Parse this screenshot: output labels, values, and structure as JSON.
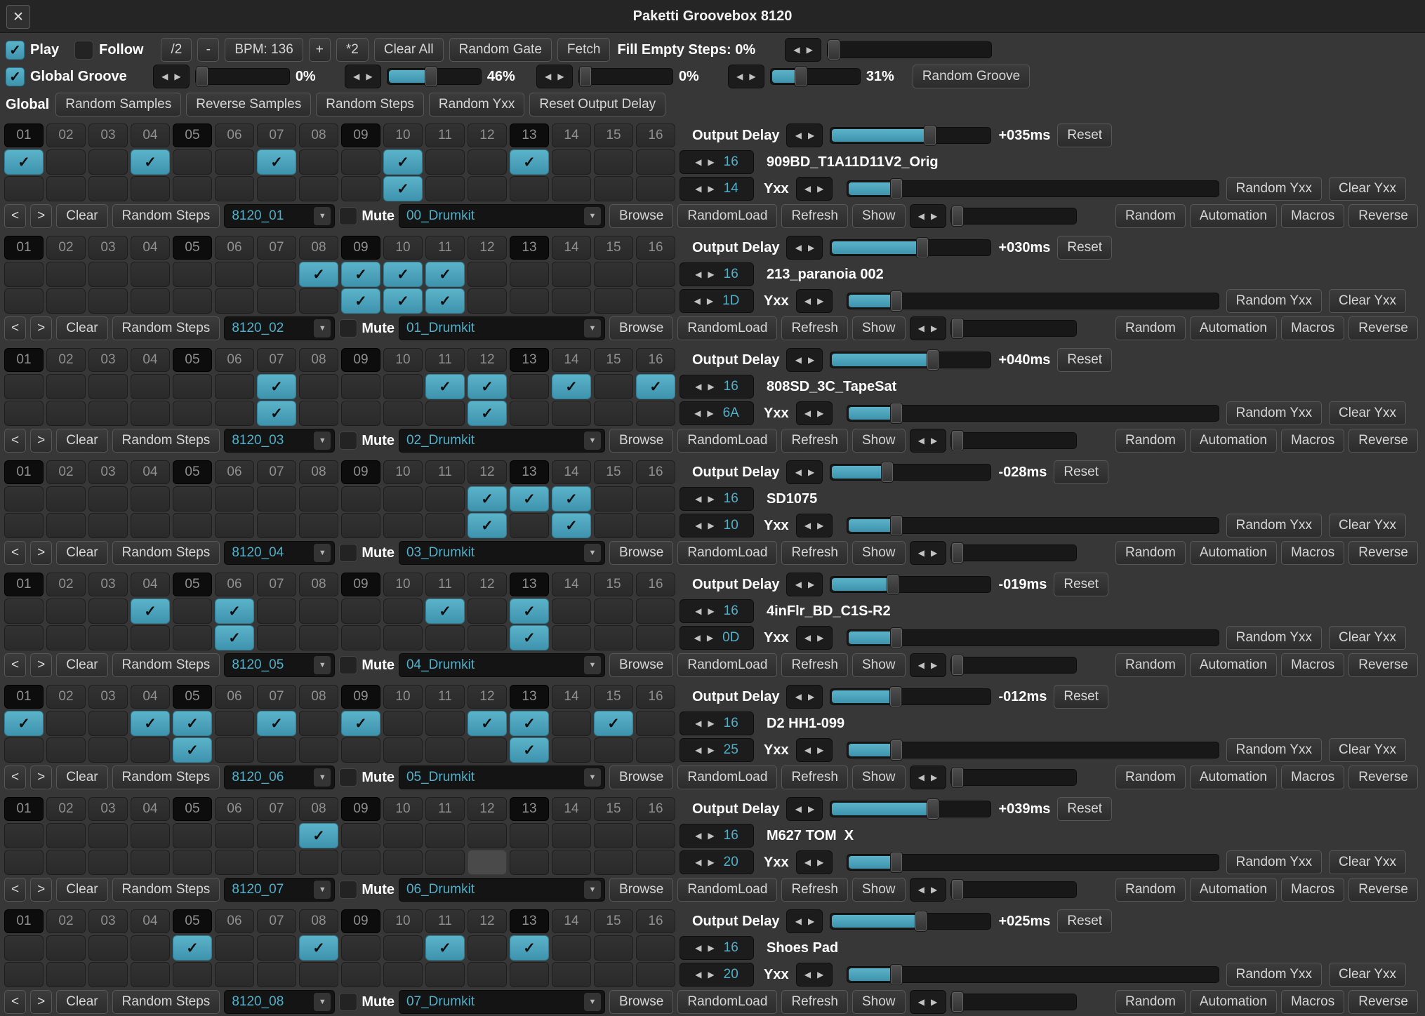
{
  "window": {
    "title": "Paketti Groovebox 8120",
    "close_glyph": "✕"
  },
  "colors": {
    "accent": "#4fb0ca",
    "accent_light": "#5bb3c9",
    "accent_dark": "#3e93ad"
  },
  "toolbar": {
    "play_label": "Play",
    "play_checked": true,
    "follow_label": "Follow",
    "follow_checked": false,
    "buttons": [
      "/2",
      "-",
      "BPM: 136",
      "+",
      "*2",
      "Clear All",
      "Random Gate",
      "Fetch"
    ],
    "fill_label": "Fill Empty Steps: 0%",
    "fill_pct": 0
  },
  "groove": {
    "label": "Global Groove",
    "checked": true,
    "sliders": [
      {
        "pct": 0,
        "text": "0%"
      },
      {
        "pct": 46,
        "text": "46%"
      },
      {
        "pct": 0,
        "text": "0%"
      },
      {
        "pct": 31,
        "text": "31%"
      }
    ],
    "random_groove_label": "Random Groove"
  },
  "tabs": {
    "selected": "Global",
    "buttons": [
      "Random Samples",
      "Reverse Samples",
      "Random Steps",
      "Random Yxx",
      "Reset Output Delay"
    ]
  },
  "steps": [
    "01",
    "02",
    "03",
    "04",
    "05",
    "06",
    "07",
    "08",
    "09",
    "10",
    "11",
    "12",
    "13",
    "14",
    "15",
    "16"
  ],
  "track_labels": {
    "output_delay": "Output Delay",
    "reset": "Reset",
    "yxx": "Yxx",
    "random_yxx": "Random Yxx",
    "clear_yxx": "Clear Yxx",
    "prev": "<",
    "next": ">",
    "clear": "Clear",
    "random_steps": "Random Steps",
    "mute": "Mute",
    "browse": "Browse",
    "random_load": "RandomLoad",
    "refresh": "Refresh",
    "show": "Show",
    "random": "Random",
    "automation": "Automation",
    "macros": "Macros",
    "reverse": "Reverse"
  },
  "tracks": [
    {
      "delay_ms": "+035ms",
      "delay_pct": 63,
      "steps_count": "16",
      "sample_name": "909BD_T1A11D11V2_Orig",
      "yxx_value": "14",
      "yxx_pct": 12,
      "pattern": "8120_01",
      "drumkit": "00_Drumkit",
      "row_a": [
        1,
        4,
        7,
        10,
        13
      ],
      "row_b": [
        10
      ],
      "row_b_highlight": null
    },
    {
      "delay_ms": "+030ms",
      "delay_pct": 58,
      "steps_count": "16",
      "sample_name": "213_paranoia 002",
      "yxx_value": "1D",
      "yxx_pct": 12,
      "pattern": "8120_02",
      "drumkit": "01_Drumkit",
      "row_a": [
        8,
        9,
        10,
        11
      ],
      "row_b": [
        9,
        10,
        11
      ],
      "row_b_highlight": null
    },
    {
      "delay_ms": "+040ms",
      "delay_pct": 65,
      "steps_count": "16",
      "sample_name": "808SD_3C_TapeSat",
      "yxx_value": "6A",
      "yxx_pct": 12,
      "pattern": "8120_03",
      "drumkit": "02_Drumkit",
      "row_a": [
        7,
        11,
        12,
        14,
        16
      ],
      "row_b": [
        7,
        12
      ],
      "row_b_highlight": null
    },
    {
      "delay_ms": "-028ms",
      "delay_pct": 34,
      "steps_count": "16",
      "sample_name": "SD1075",
      "yxx_value": "10",
      "yxx_pct": 12,
      "pattern": "8120_04",
      "drumkit": "03_Drumkit",
      "row_a": [
        12,
        13,
        14
      ],
      "row_b": [
        12,
        14
      ],
      "row_b_highlight": null
    },
    {
      "delay_ms": "-019ms",
      "delay_pct": 38,
      "steps_count": "16",
      "sample_name": "4inFlr_BD_C1S-R2",
      "yxx_value": "0D",
      "yxx_pct": 12,
      "pattern": "8120_05",
      "drumkit": "04_Drumkit",
      "row_a": [
        4,
        6,
        11,
        13
      ],
      "row_b": [
        6,
        13
      ],
      "row_b_highlight": null
    },
    {
      "delay_ms": "-012ms",
      "delay_pct": 40,
      "steps_count": "16",
      "sample_name": "D2 HH1-099",
      "yxx_value": "25",
      "yxx_pct": 12,
      "pattern": "8120_06",
      "drumkit": "05_Drumkit",
      "row_a": [
        1,
        4,
        5,
        7,
        9,
        12,
        13,
        15
      ],
      "row_b": [
        5,
        13
      ],
      "row_b_highlight": null
    },
    {
      "delay_ms": "+039ms",
      "delay_pct": 65,
      "steps_count": "16",
      "sample_name": "M627 TOM  X",
      "yxx_value": "20",
      "yxx_pct": 12,
      "pattern": "8120_07",
      "drumkit": "06_Drumkit",
      "row_a": [
        8
      ],
      "row_b": [],
      "row_b_highlight": 12
    },
    {
      "delay_ms": "+025ms",
      "delay_pct": 57,
      "steps_count": "16",
      "sample_name": "Shoes Pad",
      "yxx_value": "20",
      "yxx_pct": 12,
      "pattern": "8120_08",
      "drumkit": "07_Drumkit",
      "row_a": [
        5,
        8,
        11,
        13
      ],
      "row_b": [],
      "row_b_highlight": null
    }
  ]
}
